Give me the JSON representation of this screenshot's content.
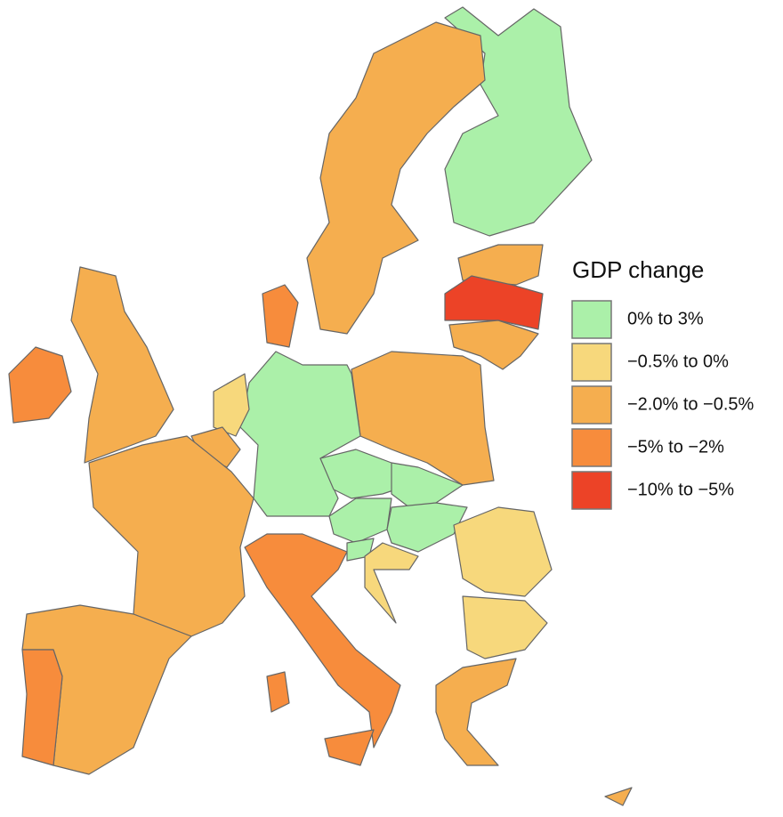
{
  "legend": {
    "title": "GDP change",
    "items": [
      {
        "label": "0% to 3%",
        "color": "#abf0a9"
      },
      {
        "label": "−0.5% to 0%",
        "color": "#f7d87c"
      },
      {
        "label": "−2.0% to −0.5%",
        "color": "#f5ae4f"
      },
      {
        "label": "−5% to −2%",
        "color": "#f78c3c"
      },
      {
        "label": "−10% to −5%",
        "color": "#ec4327"
      }
    ]
  }
}
